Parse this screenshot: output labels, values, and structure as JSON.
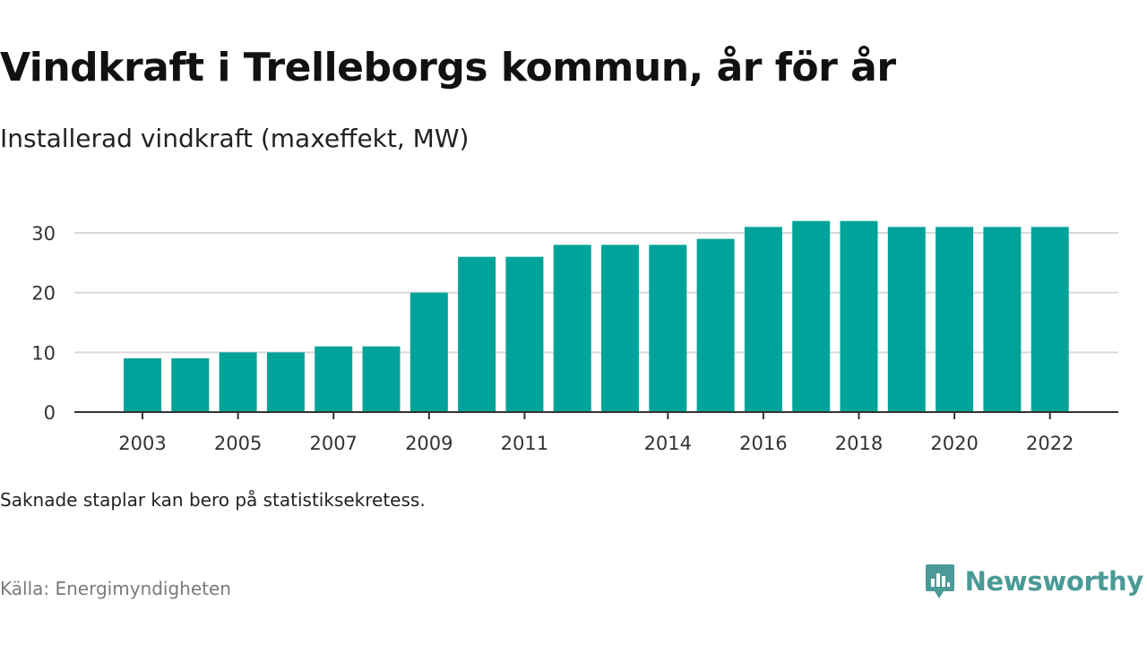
{
  "header": {
    "title": "Vindkraft i Trelleborgs kommun, år för år",
    "subtitle": "Installerad vindkraft (maxeffekt, MW)"
  },
  "footer": {
    "note": "Saknade staplar kan bero på statistiksekretess.",
    "source": "Källa: Energimyndigheten",
    "brand": "Newsworthy"
  },
  "colors": {
    "bar": "#00a39a",
    "grid": "#d9d9d9",
    "axis": "#333333",
    "brand": "#4a9a97"
  },
  "chart_data": {
    "type": "bar",
    "title": "Vindkraft i Trelleborgs kommun, år för år",
    "subtitle": "Installerad vindkraft (maxeffekt, MW)",
    "categories": [
      "2003",
      "2004",
      "2005",
      "2006",
      "2007",
      "2008",
      "2009",
      "2010",
      "2011",
      "2012",
      "2013",
      "2014",
      "2015",
      "2016",
      "2017",
      "2018",
      "2019",
      "2020",
      "2021",
      "2022"
    ],
    "values": [
      9,
      9,
      10,
      10,
      11,
      11,
      20,
      26,
      26,
      28,
      28,
      28,
      29,
      31,
      32,
      32,
      31,
      31,
      31,
      31
    ],
    "x_tick_labels": [
      "2003",
      "2005",
      "2007",
      "2009",
      "2011",
      "2014",
      "2016",
      "2018",
      "2020",
      "2022"
    ],
    "y_ticks": [
      0,
      10,
      20,
      30
    ],
    "ylim": [
      0,
      32
    ],
    "grid": true,
    "xlabel": "",
    "ylabel": ""
  }
}
